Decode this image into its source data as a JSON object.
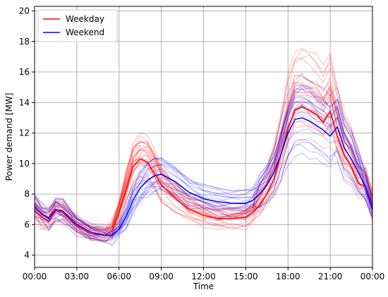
{
  "chart_data": {
    "type": "line",
    "title": "",
    "xlabel": "Time",
    "ylabel": "Power demand [MW]",
    "x_ticks": [
      "00:00",
      "03:00",
      "06:00",
      "09:00",
      "12:00",
      "15:00",
      "18:00",
      "21:00",
      "00:00"
    ],
    "x_tick_hours": [
      0,
      3,
      6,
      9,
      12,
      15,
      18,
      21,
      24
    ],
    "y_ticks": [
      4,
      6,
      8,
      10,
      12,
      14,
      16,
      18,
      20
    ],
    "xlim": [
      0,
      24
    ],
    "ylim": [
      3.2,
      20.3
    ],
    "grid": true,
    "legend_position": "top-left",
    "colors": {
      "weekday": "#ff0000",
      "weekend": "#0000ff"
    },
    "x": [
      0,
      0.5,
      1,
      1.5,
      2,
      3,
      4,
      5,
      5.5,
      6,
      6.5,
      7,
      7.5,
      8,
      8.5,
      9,
      10,
      11,
      12,
      13,
      14,
      15,
      15.5,
      16,
      16.5,
      17,
      17.5,
      18,
      18.5,
      19,
      19.5,
      20,
      20.5,
      21,
      21.5,
      22,
      22.5,
      23,
      23.5,
      24
    ],
    "series": [
      {
        "name": "Weekday",
        "values": [
          6.9,
          6.5,
          6.2,
          6.9,
          6.8,
          5.9,
          5.4,
          5.3,
          5.6,
          6.8,
          8.3,
          9.8,
          10.3,
          10.1,
          9.4,
          8.6,
          7.7,
          7.0,
          6.6,
          6.4,
          6.4,
          6.5,
          6.8,
          7.3,
          8.0,
          9.0,
          10.6,
          12.3,
          13.5,
          13.7,
          13.5,
          13.2,
          12.7,
          13.4,
          11.8,
          10.5,
          9.8,
          8.7,
          8.5,
          7.2
        ]
      },
      {
        "name": "Weekend",
        "values": [
          7.2,
          6.7,
          6.4,
          7.0,
          6.9,
          6.0,
          5.5,
          5.3,
          5.3,
          5.7,
          6.5,
          7.6,
          8.4,
          8.9,
          9.2,
          9.3,
          8.8,
          8.1,
          7.7,
          7.5,
          7.4,
          7.4,
          7.6,
          8.0,
          8.6,
          9.4,
          10.6,
          12.0,
          12.9,
          13.0,
          12.8,
          12.5,
          12.2,
          11.8,
          12.4,
          11.0,
          10.3,
          9.4,
          8.5,
          7.0
        ]
      }
    ],
    "background_series_count": {
      "weekday": 26,
      "weekend": 18
    }
  }
}
